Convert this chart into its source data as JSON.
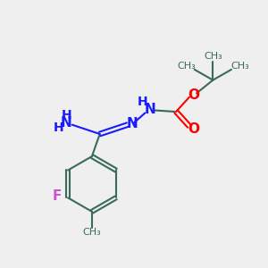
{
  "bg_color": "#efefef",
  "bond_color": "#3a6b5a",
  "n_color": "#1a1aff",
  "o_color": "#ff0000",
  "f_color": "#cc55cc",
  "lw": 1.5,
  "fig_size": [
    3.0,
    3.0
  ],
  "dpi": 100,
  "xlim": [
    0,
    10
  ],
  "ylim": [
    0,
    10
  ]
}
